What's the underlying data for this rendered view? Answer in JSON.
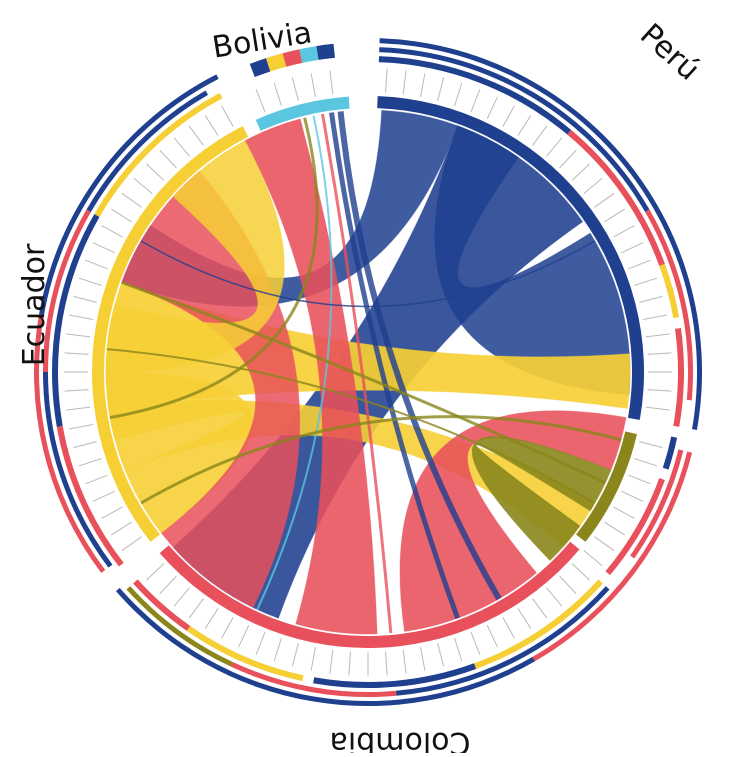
{
  "labels": {
    "bolivia": "Bolivia",
    "peru": "Perú",
    "ecuador": "Ecuador",
    "colombia": "Colombia"
  },
  "colors": {
    "blue": "#1f3f8f",
    "red": "#e8505b",
    "yellow": "#f6cf35",
    "olive": "#8a861c",
    "cyan": "#5bc6df",
    "tick": "#b9b9b9"
  }
}
